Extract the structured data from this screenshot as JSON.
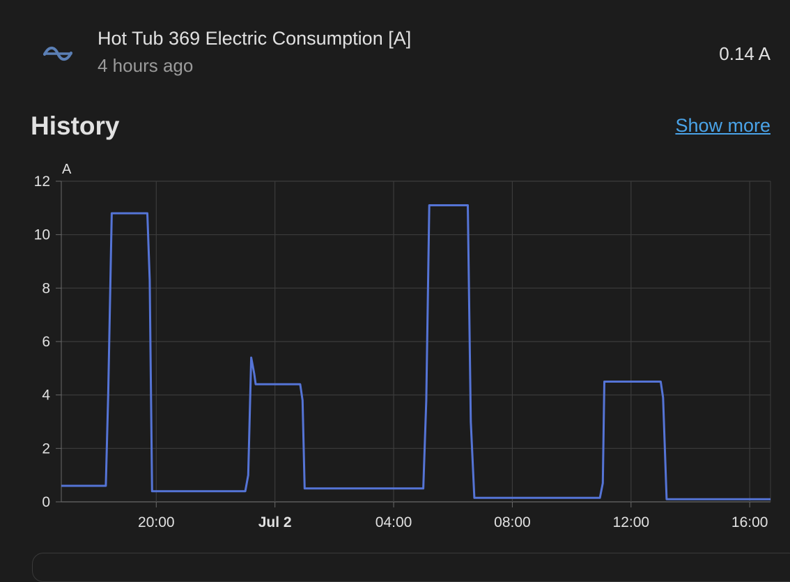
{
  "entity": {
    "name": "Hot Tub 369 Electric Consumption [A]",
    "last_changed": "4 hours ago",
    "state": "0.14 A",
    "icon": "sine-wave-icon",
    "icon_color": "#5b7fb5"
  },
  "history": {
    "title": "History",
    "show_more_label": "Show more"
  },
  "chart_data": {
    "type": "line",
    "title": "",
    "ylabel": "A",
    "xlabel": "",
    "ylim": [
      0,
      12
    ],
    "yticks": [
      0,
      2,
      4,
      6,
      8,
      10,
      12
    ],
    "x_unit": "hours",
    "x_range_hours": [
      16.8,
      40.7
    ],
    "xticks": [
      {
        "label": "20:00",
        "hour": 20,
        "bold": false
      },
      {
        "label": "Jul 2",
        "hour": 24,
        "bold": true
      },
      {
        "label": "04:00",
        "hour": 28,
        "bold": false
      },
      {
        "label": "08:00",
        "hour": 32,
        "bold": false
      },
      {
        "label": "12:00",
        "hour": 36,
        "bold": false
      },
      {
        "label": "16:00",
        "hour": 40,
        "bold": false
      }
    ],
    "grid": true,
    "series_color": "#5574d6",
    "series": [
      {
        "name": "",
        "points": [
          [
            16.8,
            0.6
          ],
          [
            18.3,
            0.6
          ],
          [
            18.38,
            4.0
          ],
          [
            18.5,
            10.8
          ],
          [
            19.7,
            10.8
          ],
          [
            19.78,
            8.3
          ],
          [
            19.86,
            0.4
          ],
          [
            23.0,
            0.4
          ],
          [
            23.1,
            1.0
          ],
          [
            23.2,
            5.4
          ],
          [
            23.3,
            4.8
          ],
          [
            23.35,
            4.4
          ],
          [
            24.85,
            4.4
          ],
          [
            24.93,
            3.8
          ],
          [
            25.0,
            0.5
          ],
          [
            29.0,
            0.5
          ],
          [
            29.1,
            3.8
          ],
          [
            29.2,
            11.1
          ],
          [
            30.5,
            11.1
          ],
          [
            30.6,
            3.0
          ],
          [
            30.72,
            0.15
          ],
          [
            34.95,
            0.15
          ],
          [
            35.05,
            0.7
          ],
          [
            35.1,
            4.5
          ],
          [
            37.0,
            4.5
          ],
          [
            37.08,
            3.9
          ],
          [
            37.2,
            0.1
          ],
          [
            40.7,
            0.1
          ]
        ]
      }
    ]
  }
}
